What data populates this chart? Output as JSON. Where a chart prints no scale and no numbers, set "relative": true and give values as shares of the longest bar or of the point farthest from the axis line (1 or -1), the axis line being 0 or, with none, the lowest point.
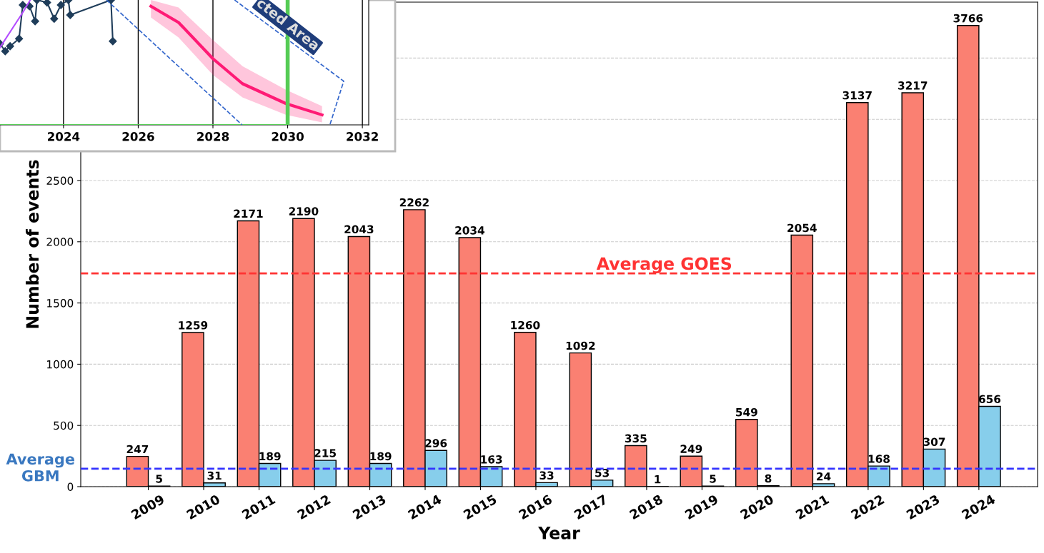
{
  "chart_data": [
    {
      "type": "bar",
      "xlabel": "Year",
      "ylabel": "Number of events",
      "categories": [
        "2009",
        "2010",
        "2011",
        "2012",
        "2013",
        "2014",
        "2015",
        "2016",
        "2017",
        "2018",
        "2019",
        "2020",
        "2021",
        "2022",
        "2023",
        "2024"
      ],
      "series": [
        {
          "color": "#fa8072",
          "values": [
            247,
            1259,
            2171,
            2190,
            2043,
            2262,
            2034,
            1260,
            1092,
            335,
            249,
            549,
            2054,
            3137,
            3217,
            3766
          ]
        },
        {
          "color": "#87ceeb",
          "values": [
            5,
            31,
            189,
            215,
            189,
            296,
            163,
            33,
            53,
            1,
            5,
            8,
            24,
            168,
            307,
            656
          ]
        }
      ],
      "ylim": [
        0,
        3957
      ],
      "yticks": [
        0,
        500,
        1000,
        1500,
        2000,
        2500,
        {
          "value": 3000,
          "label": null
        },
        {
          "value": 3500,
          "label": null
        }
      ],
      "grid": "y",
      "data_labels": true,
      "ref_lines": [
        {
          "axis": "y",
          "value": 1742,
          "label": "Average GOES",
          "color": "#ff3333",
          "line_style": "dashed"
        },
        {
          "axis": "y",
          "value": 146,
          "label": "Average GBM",
          "color": "#3333ff",
          "line_style": "dashed"
        }
      ]
    },
    {
      "type": "line",
      "relative": true,
      "xlim": [
        2022.3,
        2032.17
      ],
      "xticks": [
        2024,
        2026,
        2028,
        2030,
        2032
      ],
      "grid": "x",
      "series": [
        {
          "color": "#1f3d5a",
          "marker": "diamond",
          "x": [
            2022.3,
            2022.44,
            2022.57,
            2022.81,
            2022.91,
            2023.09,
            2023.24,
            2023.29,
            2023.56,
            2023.75,
            2023.93,
            2024.13,
            2024.18,
            2025.27,
            2025.32
          ],
          "values": [
            0.65,
            0.59,
            0.63,
            0.69,
            0.96,
            0.95,
            0.83,
            1,
            0.98,
            0.85,
            0.96,
            1,
            0.88,
            1,
            0.67
          ]
        },
        {
          "color": "#b44dff",
          "x": [
            2022.3,
            2022.91,
            2023.11
          ],
          "values": [
            0.62,
            0.9,
            1
          ]
        },
        {
          "color": "#ff1a75",
          "x": [
            2026.34,
            2027.08,
            2028.0,
            2028.79,
            2029.96,
            2030.92
          ],
          "values": [
            0.95,
            0.82,
            0.53,
            0.33,
            0.17,
            0.08
          ],
          "lower": [
            0.86,
            0.7,
            0.4,
            0.22,
            0.08,
            0.02
          ],
          "upper": [
            1,
            0.94,
            0.68,
            0.47,
            0.28,
            0.15
          ]
        },
        {
          "color": "#55cc55",
          "x": [
            2022.3,
            2030
          ],
          "values": [
            0,
            0
          ]
        },
        {
          "color": "#3366cc",
          "line_style": "dashed",
          "x": [
            2028.58,
            2031.5,
            2031.13
          ],
          "values": [
            1,
            0.35,
            0
          ]
        },
        {
          "color": "#3366cc",
          "line_style": "dashed",
          "x": [
            2025.15,
            2028.78
          ],
          "values": [
            1,
            0
          ]
        }
      ],
      "ref_lines": [
        {
          "axis": "x",
          "value": 2030,
          "color": "#55cc55",
          "line_style": "solid"
        }
      ],
      "annotations": [
        "cted Area"
      ]
    }
  ]
}
